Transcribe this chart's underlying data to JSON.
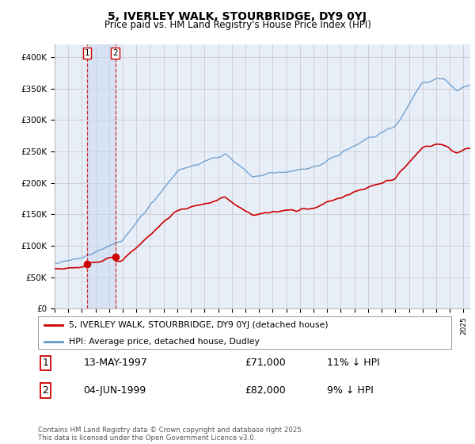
{
  "title": "5, IVERLEY WALK, STOURBRIDGE, DY9 0YJ",
  "subtitle": "Price paid vs. HM Land Registry's House Price Index (HPI)",
  "ylim": [
    0,
    420000
  ],
  "xlim_year": [
    1995.0,
    2025.5
  ],
  "legend_label_red": "5, IVERLEY WALK, STOURBRIDGE, DY9 0YJ (detached house)",
  "legend_label_blue": "HPI: Average price, detached house, Dudley",
  "purchase1_date": "13-MAY-1997",
  "purchase1_year": 1997.37,
  "purchase1_price": 71000,
  "purchase2_date": "04-JUN-1999",
  "purchase2_year": 1999.45,
  "purchase2_price": 82000,
  "purchase1_hpi_pct": "11% ↓ HPI",
  "purchase2_hpi_pct": "9% ↓ HPI",
  "copyright": "Contains HM Land Registry data © Crown copyright and database right 2025.\nThis data is licensed under the Open Government Licence v3.0.",
  "red_color": "#cc0000",
  "blue_color": "#6699cc",
  "bg_color": "#e8eef8",
  "grid_color": "#bbbbbb",
  "yticks": [
    0,
    50000,
    100000,
    150000,
    200000,
    250000,
    300000,
    350000,
    400000
  ],
  "ytick_labels": [
    "£0",
    "£50K",
    "£100K",
    "£150K",
    "£200K",
    "£250K",
    "£300K",
    "£350K",
    "£400K"
  ]
}
